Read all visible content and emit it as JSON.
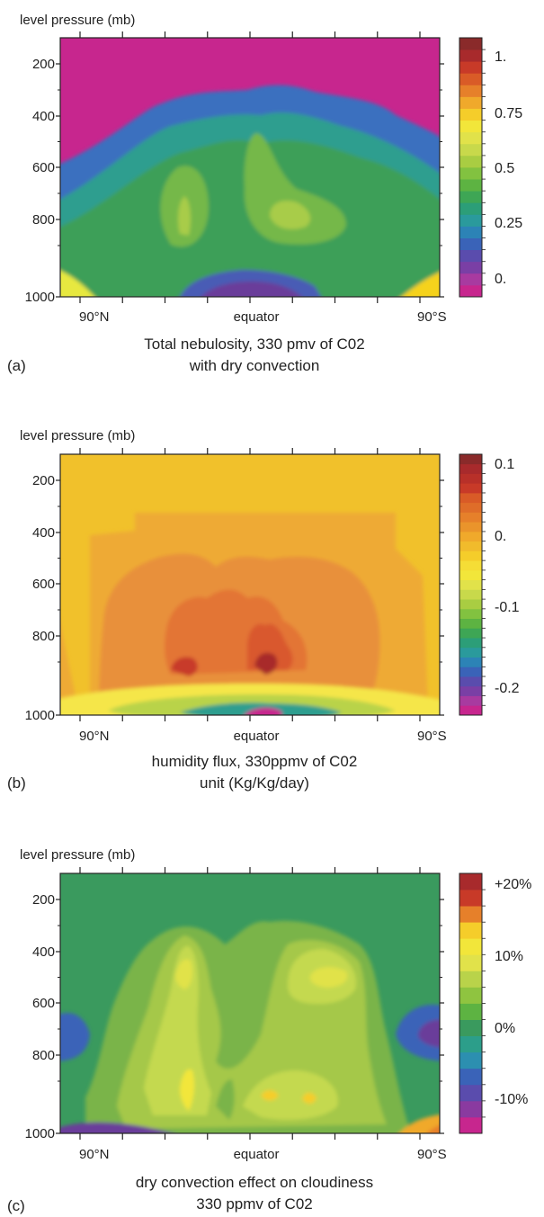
{
  "panels": [
    {
      "letter": "(a)",
      "caption_line1": "Total nebulosity, 330 pmv of C02",
      "caption_line2": "with dry convection",
      "ylabel": "level pressure (mb)",
      "yticks": [
        "200",
        "400",
        "600",
        "800",
        "1000"
      ],
      "xticks": [
        "90°N",
        "equator",
        "90°S"
      ],
      "colorbar_labels": [
        "1.",
        "0.75",
        "0.5",
        "0.25",
        "0."
      ],
      "colors": {
        "background": "#c7268e",
        "bands": [
          "#3a6fbf",
          "#2f9e8f",
          "#3c9f58",
          "#74b84a",
          "#a8cc4a",
          "#c6da62"
        ],
        "hot": [
          "#e7e83f",
          "#f5d21c"
        ],
        "cold": [
          "#6a3d9a",
          "#4a5bb5"
        ],
        "colorbar": [
          "#c7268e",
          "#a83aa0",
          "#7a3fa5",
          "#5a4cad",
          "#3a63b8",
          "#2c83b6",
          "#2a9a9c",
          "#2c9e78",
          "#3ea655",
          "#5db342",
          "#82c240",
          "#a9cd42",
          "#c8d94b",
          "#e1e24a",
          "#f2e63a",
          "#f5cd2a",
          "#f0a92b",
          "#e6802a",
          "#d95b27",
          "#c83a28",
          "#a82a2c",
          "#8a2a2a"
        ]
      }
    },
    {
      "letter": "(b)",
      "caption_line1": "humidity flux, 330ppmv of C02",
      "caption_line2": "unit (Kg/Kg/day)",
      "ylabel": "level pressure (mb)",
      "yticks": [
        "200",
        "400",
        "600",
        "800",
        "1000"
      ],
      "xticks": [
        "90°N",
        "equator",
        "90°S"
      ],
      "colorbar_labels": [
        "0.1",
        "0.",
        "-0.1",
        "-0.2"
      ],
      "colors": {
        "background": "#f1c12b",
        "bands": [
          "#eeaa34",
          "#e8903a",
          "#e37436",
          "#d9582e",
          "#c83a2a",
          "#a82a2c"
        ],
        "hot": [
          "#f5e64a",
          "#b9d34a"
        ],
        "cold": [
          "#2f9e8f",
          "#c7268e"
        ],
        "colorbar": [
          "#c7268e",
          "#a83aa0",
          "#7a3fa5",
          "#5a4cad",
          "#3a63b8",
          "#2c83b6",
          "#2a9a9c",
          "#2c9e78",
          "#3ea655",
          "#5db342",
          "#82c240",
          "#a9cd42",
          "#c8d94b",
          "#e1e24a",
          "#f2e63a",
          "#f5dd36",
          "#f5cd2a",
          "#f1bb2c",
          "#f0a92b",
          "#ea942b",
          "#e6802a",
          "#df6d29",
          "#d95b27",
          "#c83a28",
          "#b83029",
          "#a82a2c",
          "#8a2a2a"
        ]
      }
    },
    {
      "letter": "(c)",
      "caption_line1": "dry convection effect on cloudiness",
      "caption_line2": "330 ppmv of C02",
      "ylabel": "level pressure (mb)",
      "yticks": [
        "200",
        "400",
        "600",
        "800",
        "1000"
      ],
      "xticks": [
        "90°N",
        "equator",
        "90°S"
      ],
      "colorbar_labels": [
        "+20%",
        "10%",
        "0%",
        "-10%"
      ],
      "colors": {
        "background": "#3a9a5e",
        "bands": [
          "#7ab44a",
          "#a5c84a",
          "#c4d950",
          "#e1e24a",
          "#f2e63a",
          "#f5cd2a"
        ],
        "hot": [
          "#f0a92b",
          "#e6802a"
        ],
        "cold": [
          "#3a63b8",
          "#6a3d9a"
        ],
        "colorbar": [
          "#c7268e",
          "#8a3aa0",
          "#5a4cad",
          "#3a63b8",
          "#2c8fb0",
          "#2c9e8a",
          "#3a9a5e",
          "#5db342",
          "#8fc440",
          "#b9d34a",
          "#e1e24a",
          "#f2e63a",
          "#f5cd2a",
          "#e6802a",
          "#c83a28",
          "#a82a2c"
        ]
      }
    }
  ]
}
